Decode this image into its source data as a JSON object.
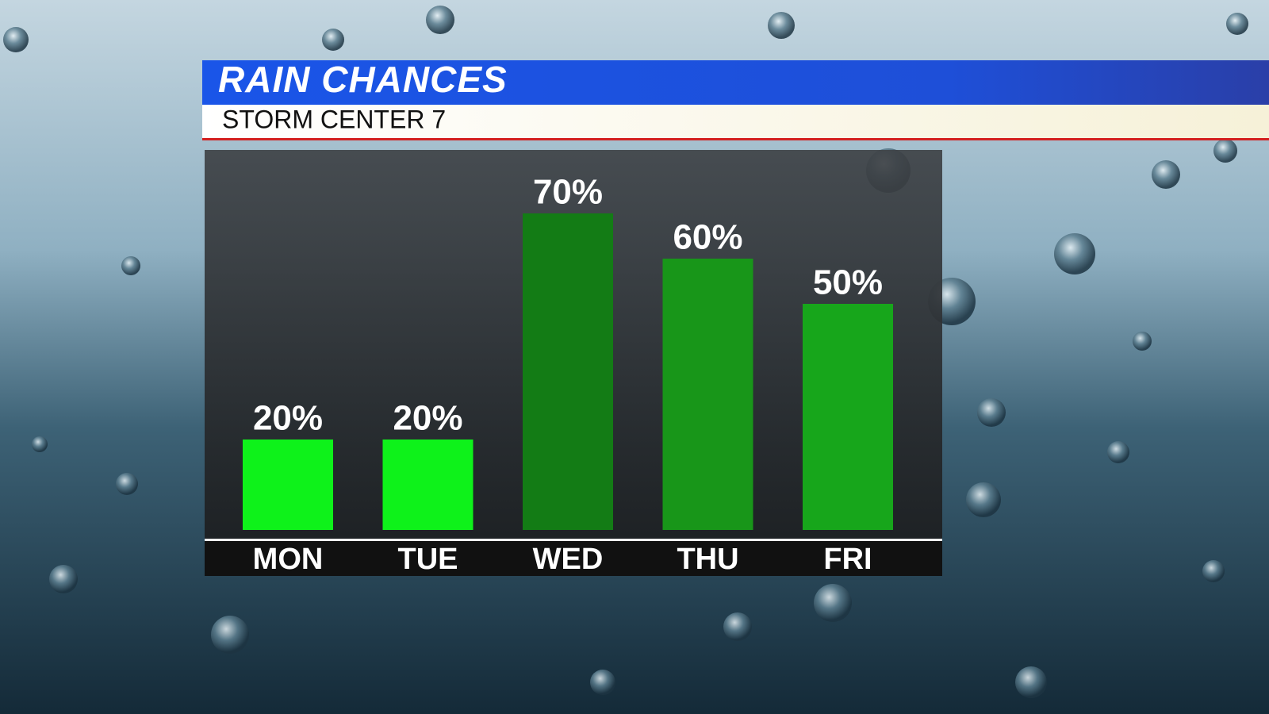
{
  "chart_data": {
    "type": "bar",
    "title": "RAIN CHANCES",
    "subtitle": "STORM CENTER 7",
    "categories": [
      "MON",
      "TUE",
      "WED",
      "THU",
      "FRI"
    ],
    "values": [
      20,
      20,
      70,
      60,
      50
    ],
    "value_labels": [
      "20%",
      "20%",
      "70%",
      "60%",
      "50%"
    ],
    "colors": [
      "#0ef21a",
      "#0ef21a",
      "#137c15",
      "#189619",
      "#17a61b"
    ]
  }
}
